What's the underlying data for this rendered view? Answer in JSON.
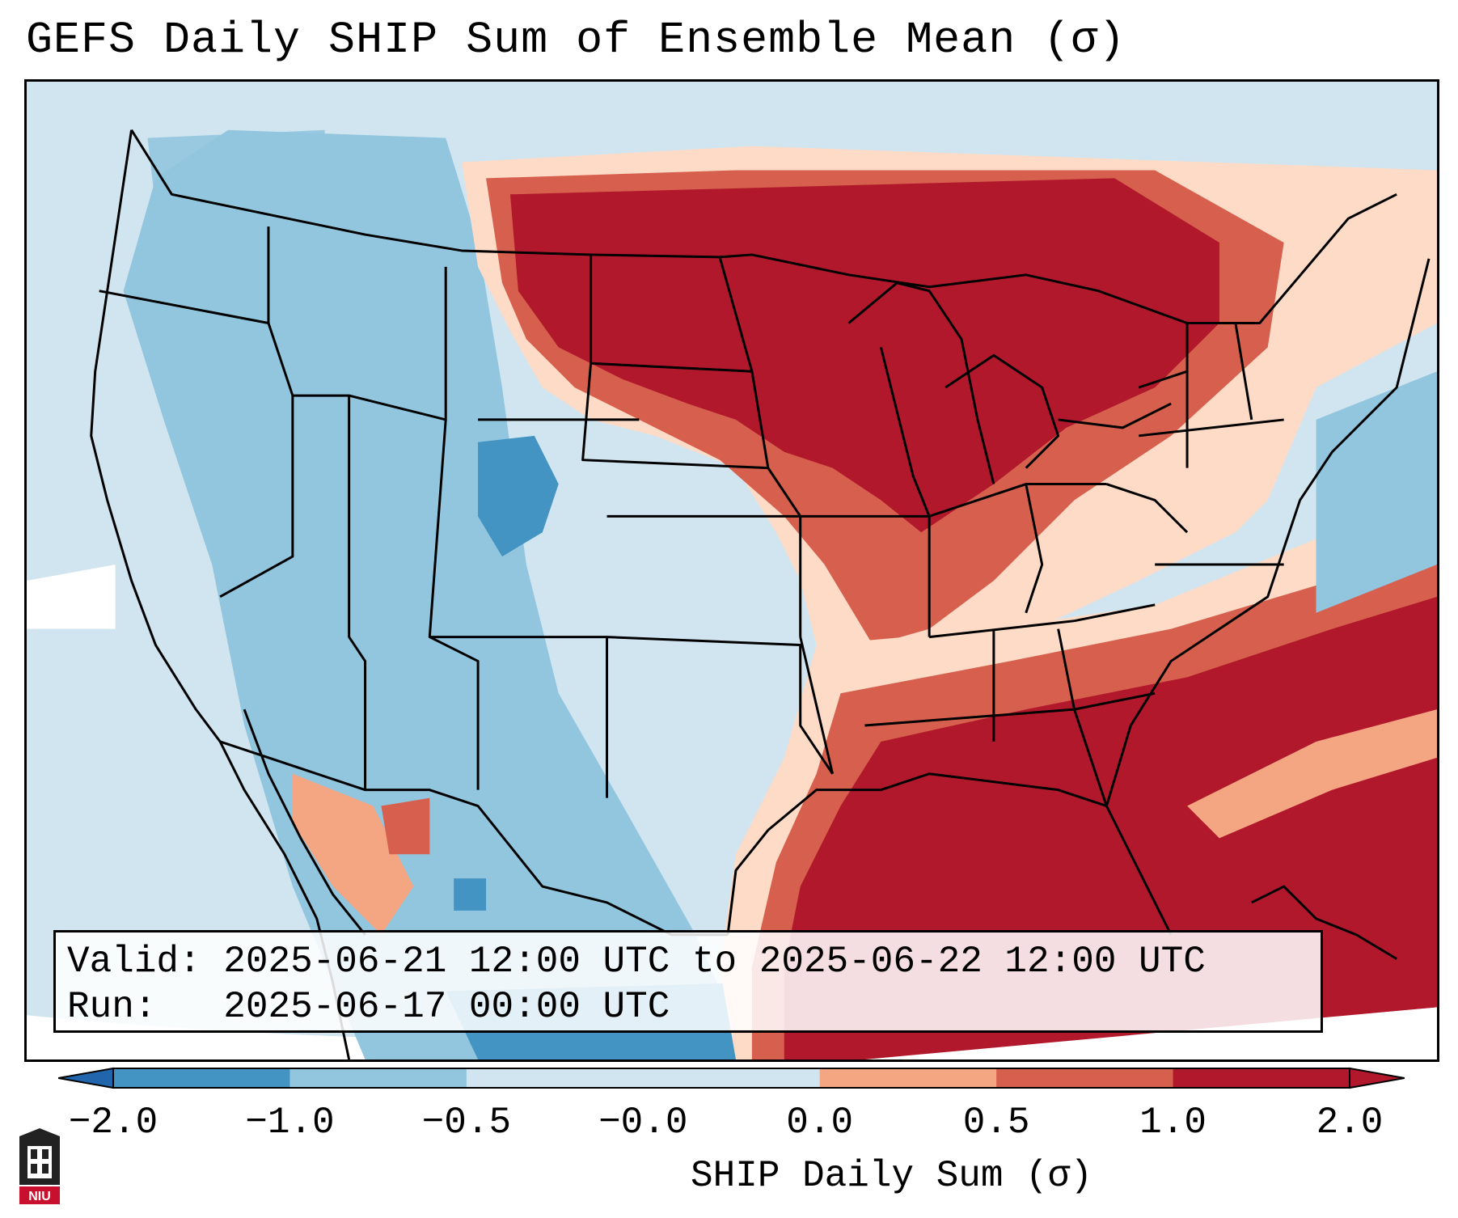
{
  "title": "GEFS Daily SHIP Sum of Ensemble Mean (σ)",
  "info": {
    "valid_label": "Valid:",
    "valid_value": "2025-06-21 12:00 UTC to 2025-06-22 12:00 UTC",
    "run_label": "Run:",
    "run_value": "2025-06-17 00:00 UTC"
  },
  "colorbar": {
    "label": "SHIP Daily Sum (σ)",
    "tick_labels": [
      "−2.0",
      "−1.0",
      "−0.5",
      "−0.0",
      "0.0",
      "0.5",
      "1.0",
      "2.0"
    ],
    "colors": [
      "#2166ac",
      "#4393c3",
      "#92c5de",
      "#d1e5f0",
      "#fddbc7",
      "#f4a582",
      "#d6604d",
      "#b2182b"
    ],
    "extend": "both"
  },
  "logo": {
    "text": "NIU"
  }
}
